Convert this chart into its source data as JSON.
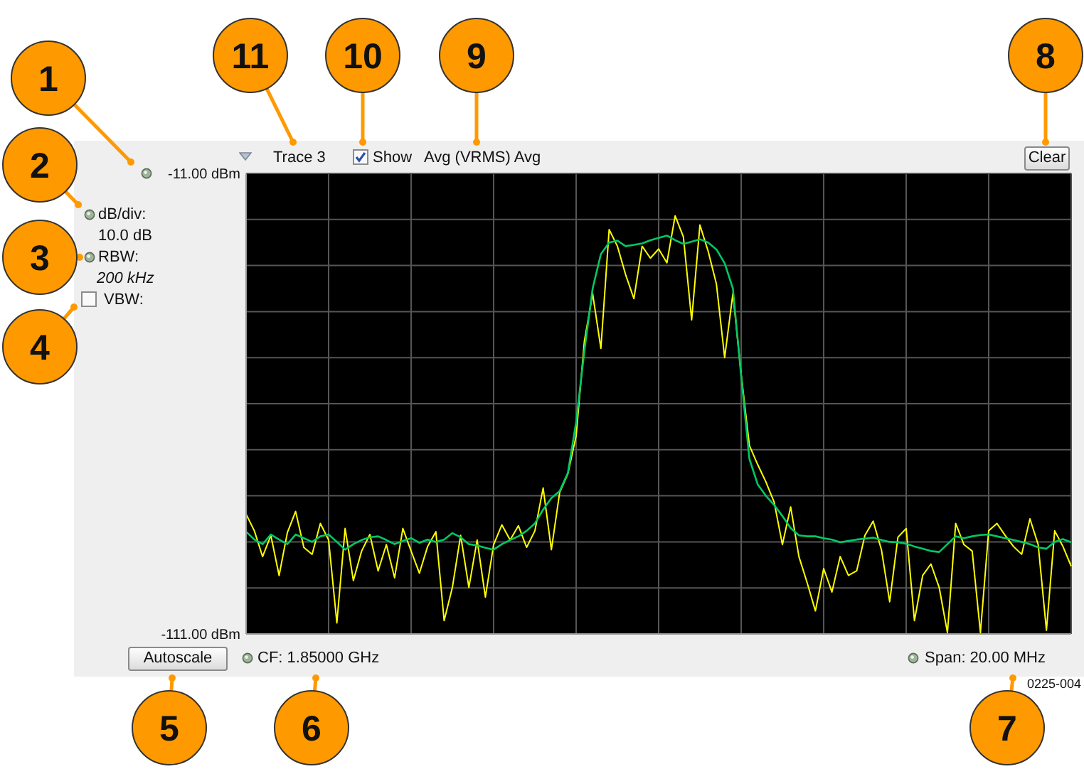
{
  "chart_data": {
    "type": "line",
    "categories": [
      null,
      null,
      null,
      null,
      null,
      null,
      null,
      null,
      null,
      null,
      null,
      null,
      null,
      null,
      null,
      null,
      null,
      null,
      null,
      null,
      null,
      null,
      null,
      null,
      null,
      null,
      null,
      null,
      null,
      null,
      null,
      null,
      null,
      null,
      null,
      null,
      null,
      null,
      null,
      null,
      null,
      null,
      null,
      null,
      null,
      null,
      null,
      null,
      null,
      null,
      null,
      null,
      null,
      null,
      null,
      null,
      null,
      null,
      null,
      null,
      null,
      null,
      null,
      null,
      null,
      null,
      null,
      null,
      null,
      null,
      null,
      null,
      null,
      null,
      null,
      null,
      null,
      null,
      null,
      null,
      null,
      null,
      null,
      null,
      null,
      null,
      null,
      null,
      null,
      null,
      null,
      null,
      null,
      null,
      null,
      null,
      null,
      null,
      null,
      null,
      null
    ],
    "series": [
      {
        "color": "#ffff00",
        "values": [
          -85,
          -88.6,
          -94.2,
          -89.6,
          -98.3,
          -89,
          -84.4,
          -92.2,
          -93.7,
          -87,
          -90.6,
          -108.6,
          -88.1,
          -99.4,
          -93,
          -89.4,
          -97.3,
          -91.6,
          -98.8,
          -88.1,
          -93,
          -97.8,
          -92,
          -88.8,
          -108.1,
          -100.9,
          -89.6,
          -100.9,
          -90.6,
          -103,
          -91.6,
          -87.3,
          -90.6,
          -87.5,
          -92.2,
          -88.6,
          -79.3,
          -92.7,
          -80.3,
          -76.2,
          -68,
          -47.4,
          -37.1,
          -49,
          -23.2,
          -26.8,
          -33,
          -38.2,
          -26.8,
          -29.4,
          -27.4,
          -30.4,
          -20.2,
          -24.8,
          -42.8,
          -22.2,
          -27.9,
          -35,
          -51,
          -37.1,
          -54.6,
          -70.1,
          -74.2,
          -78,
          -82.4,
          -91.6,
          -83.4,
          -94.2,
          -99.9,
          -106,
          -96.8,
          -101.9,
          -94.2,
          -98.3,
          -97.3,
          -89.6,
          -86.5,
          -92.7,
          -104,
          -90,
          -88.1,
          -108.1,
          -98.3,
          -95.8,
          -100.9,
          -110.7,
          -87,
          -91.6,
          -93,
          -110.7,
          -88.6,
          -87,
          -89.6,
          -92,
          -93.7,
          -86,
          -91.6,
          -110.2,
          -88.6,
          -92,
          -96.3
        ]
      },
      {
        "color": "#00c864",
        "values": [
          -88.8,
          -90.5,
          -91.5,
          -89.4,
          -90.5,
          -91.5,
          -89.4,
          -90.2,
          -91,
          -89.8,
          -89.4,
          -91,
          -92.7,
          -91.5,
          -90.6,
          -90,
          -89.8,
          -90.6,
          -91.5,
          -90.8,
          -90.2,
          -91.2,
          -90.5,
          -91,
          -90.5,
          -89.1,
          -90,
          -91.5,
          -91.8,
          -92.3,
          -92.7,
          -91.5,
          -90.6,
          -89.8,
          -88.6,
          -87,
          -84,
          -81.5,
          -80,
          -76,
          -65,
          -49.5,
          -36,
          -28.5,
          -26,
          -25.6,
          -26.8,
          -26.5,
          -26.2,
          -25.5,
          -25,
          -24.5,
          -25.5,
          -26.3,
          -25.8,
          -25.3,
          -26,
          -27.5,
          -30.5,
          -36,
          -55,
          -73,
          -78.5,
          -81,
          -83,
          -85.4,
          -88,
          -89.6,
          -89.8,
          -89.8,
          -90.2,
          -90.5,
          -91.1,
          -90.8,
          -90.5,
          -90.3,
          -90.1,
          -90.6,
          -91,
          -91.1,
          -91.4,
          -92,
          -92.5,
          -93,
          -93.2,
          -91.5,
          -89.8,
          -90.2,
          -89.8,
          -89.5,
          -89.4,
          -89.8,
          -90.2,
          -90.6,
          -91,
          -91.5,
          -92.2,
          -92.5,
          -91,
          -90.4,
          -91.1
        ]
      }
    ],
    "ylim": [
      -111,
      -11
    ],
    "yticks": [
      {
        "value": -11,
        "label": "-11.00 dBm"
      },
      {
        "value": -21,
        "label": null
      },
      {
        "value": -31,
        "label": null
      },
      {
        "value": -41,
        "label": null
      },
      {
        "value": -51,
        "label": null
      },
      {
        "value": -61,
        "label": null
      },
      {
        "value": -71,
        "label": null
      },
      {
        "value": -81,
        "label": null
      },
      {
        "value": -91,
        "label": null
      },
      {
        "value": -101,
        "label": null
      },
      {
        "value": -111,
        "label": "-111.00 dBm"
      }
    ],
    "grid": true,
    "tick_labels": "y",
    "annotations": [
      "1",
      "2",
      "3",
      "4",
      "5",
      "6",
      "7",
      "8",
      "9",
      "10",
      "11",
      "Trace 3",
      "Show",
      "Avg (VRMS) Avg",
      "Clear",
      "dB/div:",
      "10.0 dB",
      "RBW:",
      "200 kHz",
      "VBW:",
      "Autoscale",
      "CF: 1.85000 GHz",
      "Span: 20.00 MHz",
      "0225-004"
    ]
  }
}
